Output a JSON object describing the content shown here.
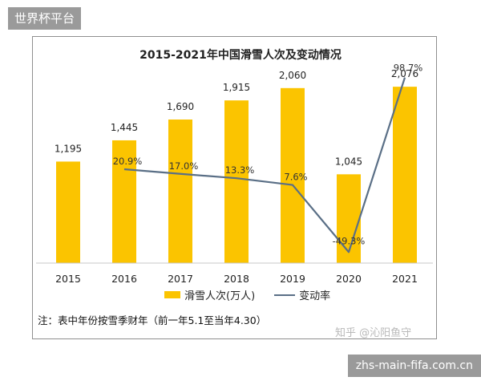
{
  "badge_top": "世界杯平台",
  "badge_bottom": "zhs-main-fifa.com.cn",
  "watermark": "知乎 @沁阳鱼守",
  "note": "注：表中年份按雪季财年（前一年5.1至当年4.30）",
  "legend": {
    "bar_label": "滑雪人次(万人)",
    "line_label": "变动率"
  },
  "colors": {
    "bar": "#fbc400",
    "line": "#5a6f86"
  },
  "chart_data": {
    "type": "bar",
    "title": "2015-2021年中国滑雪人次及变动情况",
    "categories": [
      "2015",
      "2016",
      "2017",
      "2018",
      "2019",
      "2020",
      "2021"
    ],
    "series": [
      {
        "name": "滑雪人次(万人)",
        "type": "bar",
        "values": [
          1195,
          1445,
          1690,
          1915,
          2060,
          1045,
          2076
        ],
        "labels": [
          "1,195",
          "1,445",
          "1,690",
          "1,915",
          "2,060",
          "1,045",
          "2,076"
        ]
      },
      {
        "name": "变动率",
        "type": "line",
        "values": [
          null,
          20.9,
          17.0,
          13.3,
          7.6,
          -49.3,
          98.7
        ],
        "labels": [
          "",
          "20.9%",
          "17.0%",
          "13.3%",
          "7.6%",
          "-49.3%",
          "98.7%"
        ]
      }
    ],
    "ylim_bar": [
      0,
      2200
    ],
    "ylim_line": [
      -60,
      110
    ],
    "grid": false,
    "legend_position": "bottom"
  }
}
